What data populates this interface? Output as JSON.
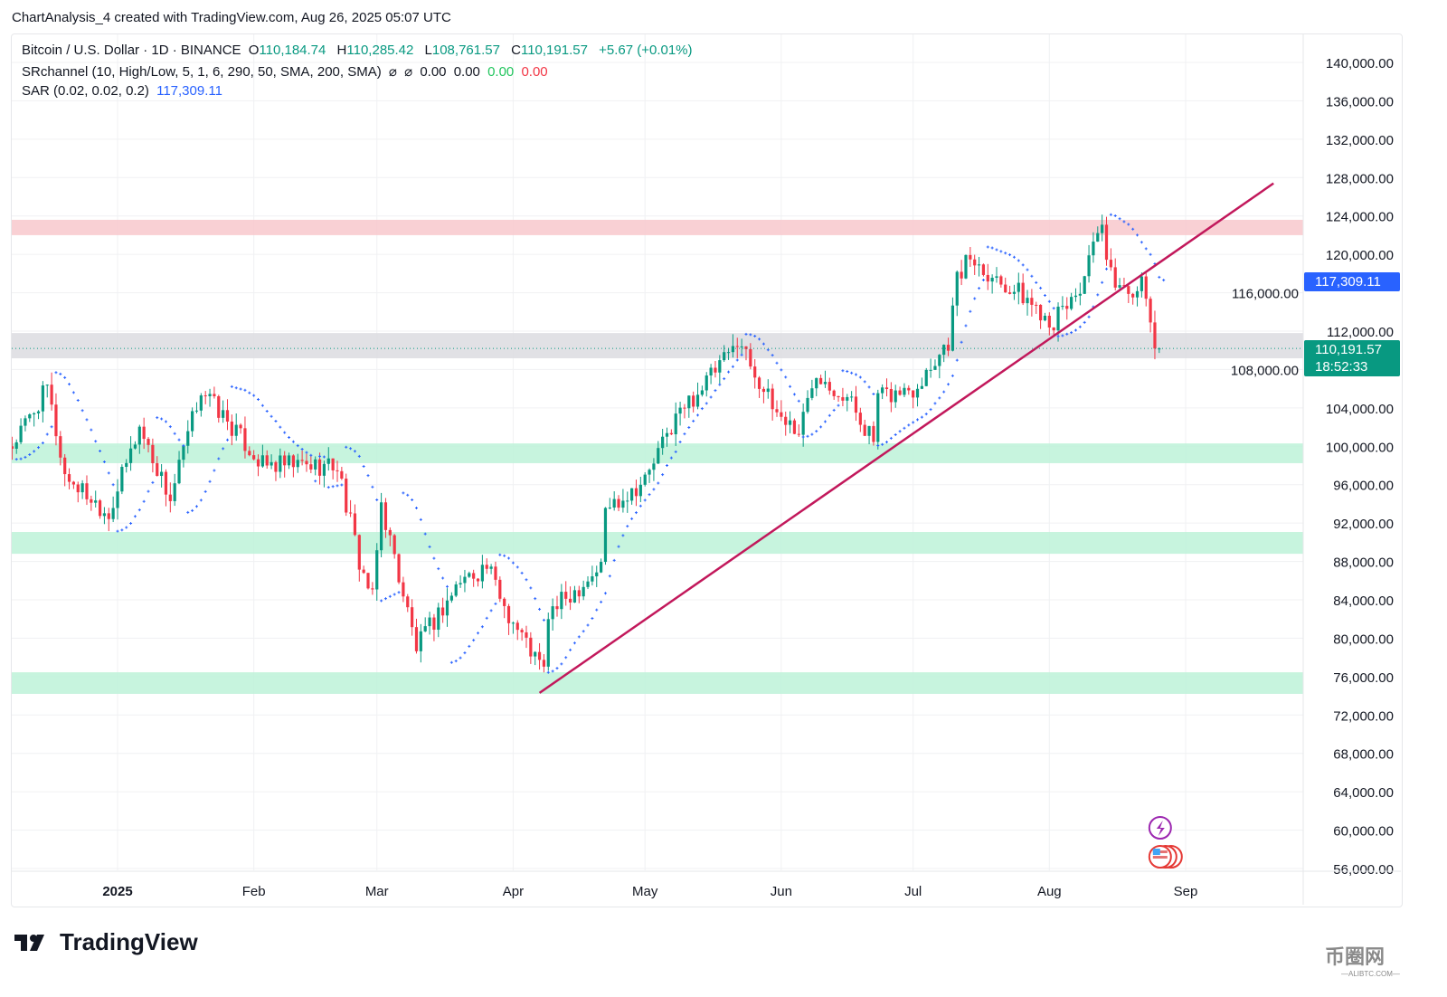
{
  "title": "ChartAnalysis_4 created with TradingView.com, Aug 26, 2025 05:07 UTC",
  "legend": {
    "symbol": "Bitcoin / U.S. Dollar · 1D · BINANCE",
    "o_label": "O",
    "o": "110,184.74",
    "h_label": "H",
    "h": "110,285.42",
    "l_label": "L",
    "l": "108,761.57",
    "c_label": "C",
    "c": "110,191.57",
    "change": "+5.67 (+0.01%)",
    "sr": "SRchannel (10, High/Low, 5, 1, 6, 290, 50, SMA, 200, SMA)",
    "sr_vals": [
      "⌀",
      "⌀",
      "0.00",
      "0.00",
      "0.00",
      "0.00"
    ],
    "sar": "SAR (0.02, 0.02, 0.2)",
    "sar_val": "117,309.11"
  },
  "badges": {
    "sar": "117,309.11",
    "price": "110,191.57",
    "countdown": "18:52:33"
  },
  "logo": "TradingView",
  "watermark": {
    "text": "币圈网",
    "sub": "—ALIBTC.COM—"
  },
  "colors": {
    "up": "#089981",
    "down": "#f23645",
    "sar": "#2962ff",
    "trendline": "#c2185b",
    "resistance": "#f8c8cc",
    "support": "#bdf2d8",
    "neutral": "#dcdce0"
  },
  "chart_data": {
    "type": "candlestick",
    "title": "Bitcoin / U.S. Dollar · 1D · BINANCE",
    "ylim": [
      56000,
      140000
    ],
    "yticks": [
      56000,
      60000,
      64000,
      68000,
      72000,
      76000,
      80000,
      84000,
      88000,
      92000,
      96000,
      100000,
      104000,
      108000,
      112000,
      116000,
      120000,
      124000,
      128000,
      132000,
      136000,
      140000
    ],
    "xticks": [
      {
        "label": "2025",
        "date": "2025-01-01"
      },
      {
        "label": "Feb",
        "date": "2025-02-01"
      },
      {
        "label": "Mar",
        "date": "2025-03-01"
      },
      {
        "label": "Apr",
        "date": "2025-04-01"
      },
      {
        "label": "May",
        "date": "2025-05-01"
      },
      {
        "label": "Jun",
        "date": "2025-06-01"
      },
      {
        "label": "Jul",
        "date": "2025-07-01"
      },
      {
        "label": "Aug",
        "date": "2025-08-01"
      },
      {
        "label": "Sep",
        "date": "2025-09-01"
      }
    ],
    "xrange": [
      "2024-12-08",
      "2025-10-05"
    ],
    "approx_close_keypoints": [
      [
        "2024-12-08",
        100000
      ],
      [
        "2024-12-16",
        106000
      ],
      [
        "2024-12-20",
        97000
      ],
      [
        "2024-12-30",
        93000
      ],
      [
        "2025-01-06",
        102000
      ],
      [
        "2025-01-13",
        94500
      ],
      [
        "2025-01-20",
        106000
      ],
      [
        "2025-01-27",
        102000
      ],
      [
        "2025-02-03",
        98000
      ],
      [
        "2025-02-20",
        98000
      ],
      [
        "2025-02-25",
        88000
      ],
      [
        "2025-02-28",
        84000
      ],
      [
        "2025-03-02",
        94000
      ],
      [
        "2025-03-10",
        79000
      ],
      [
        "2025-03-20",
        86000
      ],
      [
        "2025-03-26",
        87500
      ],
      [
        "2025-03-31",
        82500
      ],
      [
        "2025-04-06",
        78000
      ],
      [
        "2025-04-08",
        76500
      ],
      [
        "2025-04-09",
        82500
      ],
      [
        "2025-04-21",
        87500
      ],
      [
        "2025-04-22",
        93500
      ],
      [
        "2025-05-01",
        96500
      ],
      [
        "2025-05-08",
        103000
      ],
      [
        "2025-05-21",
        110000
      ],
      [
        "2025-05-22",
        111500
      ],
      [
        "2025-05-30",
        104000
      ],
      [
        "2025-06-05",
        101500
      ],
      [
        "2025-06-09",
        108000
      ],
      [
        "2025-06-17",
        104500
      ],
      [
        "2025-06-22",
        100500
      ],
      [
        "2025-06-23",
        105000
      ],
      [
        "2025-07-01",
        106000
      ],
      [
        "2025-07-09",
        111000
      ],
      [
        "2025-07-11",
        117500
      ],
      [
        "2025-07-14",
        119800
      ],
      [
        "2025-07-20",
        117500
      ],
      [
        "2025-07-25",
        116000
      ],
      [
        "2025-08-02",
        113000
      ],
      [
        "2025-08-08",
        116500
      ],
      [
        "2025-08-13",
        123000
      ],
      [
        "2025-08-14",
        118500
      ],
      [
        "2025-08-18",
        116200
      ],
      [
        "2025-08-22",
        116800
      ],
      [
        "2025-08-24",
        113000
      ],
      [
        "2025-08-25",
        110185
      ],
      [
        "2025-08-26",
        110191.57
      ]
    ],
    "zones": [
      {
        "type": "resistance",
        "from": 122000,
        "to": 123600
      },
      {
        "type": "neutral",
        "from": 109170,
        "to": 111800
      },
      {
        "type": "support",
        "from": 98240,
        "to": 100300
      },
      {
        "type": "support",
        "from": 88800,
        "to": 91070
      },
      {
        "type": "support",
        "from": 74200,
        "to": 76450
      }
    ],
    "trendline": [
      [
        "2025-04-07",
        74300
      ],
      [
        "2025-09-21",
        127400
      ]
    ],
    "last_price": 110191.57,
    "sar_last": 117309.11
  }
}
